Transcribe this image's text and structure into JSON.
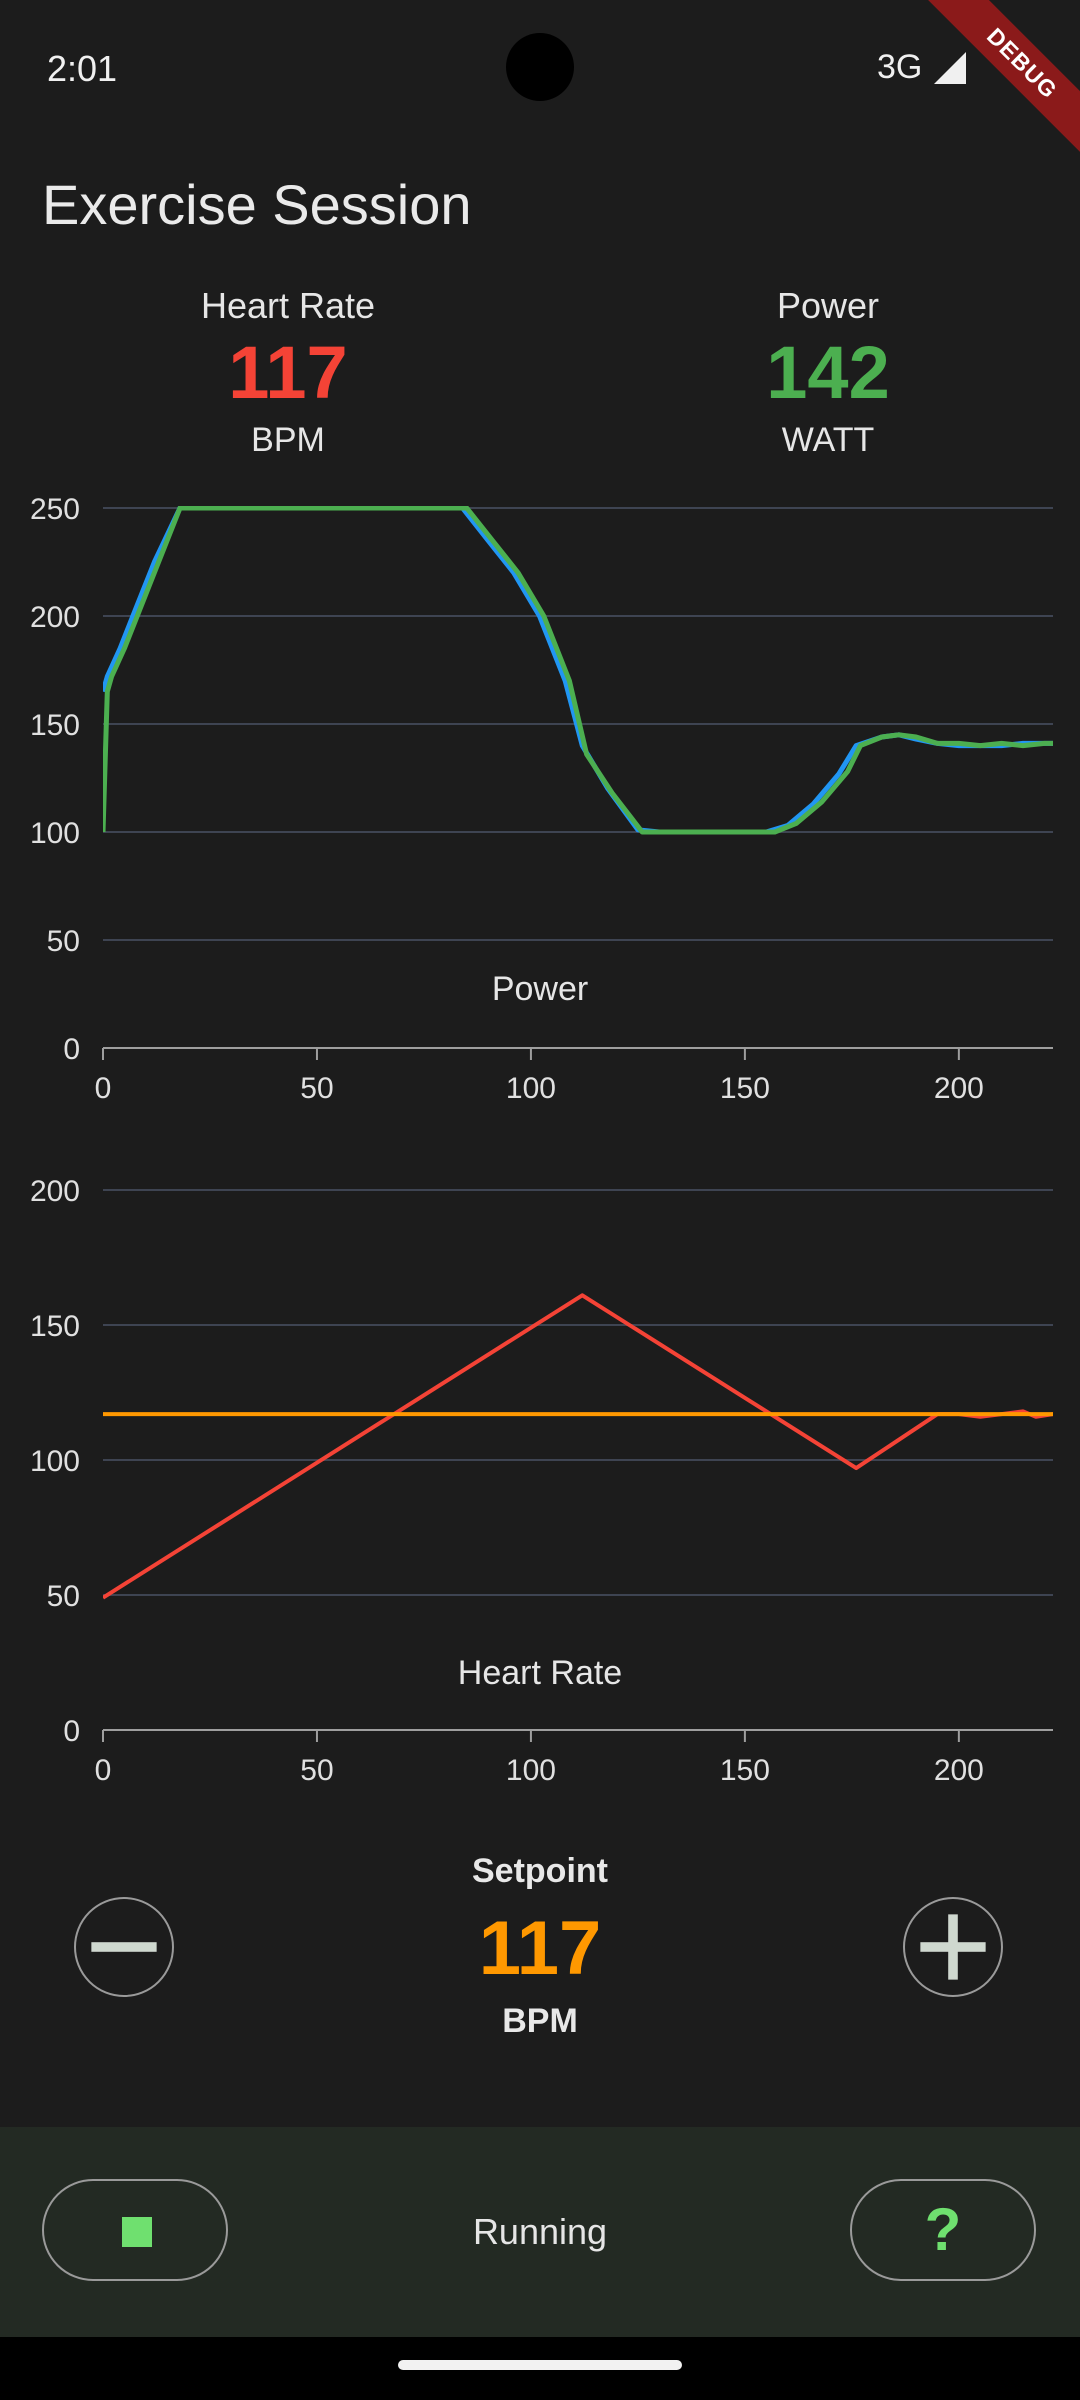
{
  "status_bar": {
    "time": "2:01",
    "network": "3G",
    "debug_label": "DEBUG"
  },
  "page_title": "Exercise Session",
  "stats": {
    "heart_rate": {
      "label": "Heart Rate",
      "value": "117",
      "unit": "BPM",
      "color": "#f44336"
    },
    "power": {
      "label": "Power",
      "value": "142",
      "unit": "WATT",
      "color": "#4caf50"
    }
  },
  "chart_data": [
    {
      "type": "line",
      "title": "Power",
      "xlim": [
        0,
        222
      ],
      "ylim": [
        0,
        250
      ],
      "x_ticks": [
        0,
        50,
        100,
        150,
        200
      ],
      "y_ticks": [
        0,
        50,
        100,
        150,
        200,
        250
      ],
      "grid": true,
      "series": [
        {
          "color": "#2196f3",
          "points": [
            [
              0,
              165
            ],
            [
              1,
              172
            ],
            [
              4,
              185
            ],
            [
              8,
              205
            ],
            [
              12,
              225
            ],
            [
              18,
              250
            ],
            [
              84,
              250
            ],
            [
              90,
              235
            ],
            [
              96,
              220
            ],
            [
              102,
              200
            ],
            [
              108,
              170
            ],
            [
              112,
              140
            ],
            [
              118,
              120
            ],
            [
              125,
              101
            ],
            [
              130,
              100
            ],
            [
              150,
              100
            ],
            [
              155,
              100
            ],
            [
              160,
              103
            ],
            [
              166,
              113
            ],
            [
              172,
              127
            ],
            [
              176,
              140
            ],
            [
              182,
              144
            ],
            [
              186,
              145
            ],
            [
              190,
              143
            ],
            [
              195,
              141
            ],
            [
              200,
              140
            ],
            [
              210,
              140
            ],
            [
              215,
              141
            ],
            [
              222,
              141
            ]
          ]
        },
        {
          "color": "#4caf50",
          "points": [
            [
              0,
              100
            ],
            [
              1,
              165
            ],
            [
              2,
              172
            ],
            [
              5,
              185
            ],
            [
              9,
              205
            ],
            [
              13,
              225
            ],
            [
              18,
              250
            ],
            [
              85,
              250
            ],
            [
              91,
              235
            ],
            [
              97,
              220
            ],
            [
              103,
              200
            ],
            [
              109,
              170
            ],
            [
              113,
              136
            ],
            [
              119,
              118
            ],
            [
              126,
              100
            ],
            [
              130,
              100
            ],
            [
              150,
              100
            ],
            [
              157,
              100
            ],
            [
              162,
              104
            ],
            [
              168,
              114
            ],
            [
              174,
              128
            ],
            [
              177,
              140
            ],
            [
              182,
              144
            ],
            [
              186,
              145
            ],
            [
              190,
              144
            ],
            [
              195,
              141
            ],
            [
              200,
              141
            ],
            [
              205,
              140
            ],
            [
              210,
              141
            ],
            [
              215,
              140
            ],
            [
              220,
              141
            ],
            [
              222,
              141
            ]
          ]
        }
      ]
    },
    {
      "type": "line",
      "title": "Heart Rate",
      "xlim": [
        0,
        222
      ],
      "ylim": [
        0,
        200
      ],
      "x_ticks": [
        0,
        50,
        100,
        150,
        200
      ],
      "y_ticks": [
        0,
        50,
        100,
        150,
        200
      ],
      "grid": true,
      "series": [
        {
          "color": "#f44336",
          "points": [
            [
              0,
              49
            ],
            [
              112,
              161
            ],
            [
              176,
              97
            ],
            [
              195,
              117
            ],
            [
              200,
              117
            ],
            [
              205,
              116
            ],
            [
              210,
              117
            ],
            [
              215,
              118
            ],
            [
              218,
              116
            ],
            [
              222,
              117
            ]
          ]
        },
        {
          "color": "#ff9800",
          "points": [
            [
              0,
              117
            ],
            [
              222,
              117
            ]
          ]
        }
      ]
    }
  ],
  "setpoint": {
    "label": "Setpoint",
    "value": "117",
    "unit": "BPM"
  },
  "controls": {
    "minus_icon": "minus-icon",
    "plus_icon": "plus-icon",
    "stop_icon": "stop-icon",
    "help_icon": "help-icon",
    "help_glyph": "?",
    "status": "Running"
  }
}
